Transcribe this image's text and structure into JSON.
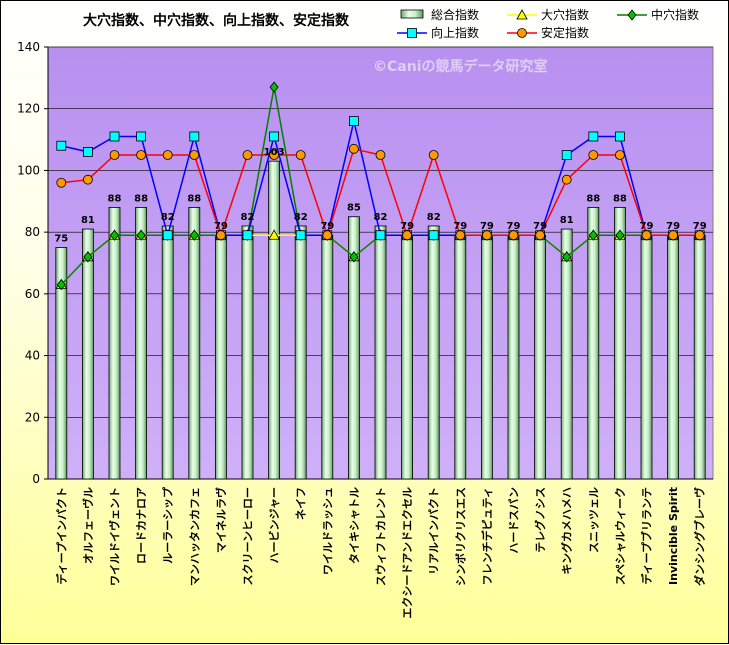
{
  "chart_data": {
    "type": "bar",
    "title": "大穴指数、中穴指数、向上指数、安定指数",
    "watermark": "©Caniの競馬データ研究室",
    "ylim": [
      0,
      140
    ],
    "yticks": [
      0,
      20,
      40,
      60,
      80,
      100,
      120,
      140
    ],
    "grid": true,
    "legend_position": "top-right",
    "categories": [
      "ディープインパクト",
      "オルフェーヴル",
      "ワイルドイヴェント",
      "ロードカナロア",
      "ルーラーシップ",
      "マンハッタンカフェ",
      "マイネルラヴ",
      "スクリーンヒーロー",
      "ハービンジャー",
      "ネイフ",
      "ワイルドラッシュ",
      "タイキシャトル",
      "スウィフトカレント",
      "エクシードアンドエクセル",
      "リアルインパクト",
      "シンボリクリスエス",
      "フレンチデピュティ",
      "ハードスパン",
      "テレグノシス",
      "キングカメハメハ",
      "スニッツェル",
      "スペシャルウィーク",
      "ディープブリランテ",
      "Invincible Spirit",
      "ダンシングブレーヴ"
    ],
    "series": [
      {
        "name": "総合指数",
        "kind": "bar",
        "color": "#c8f0c8",
        "values": [
          75,
          81,
          88,
          88,
          82,
          88,
          79,
          82,
          103,
          82,
          79,
          85,
          82,
          79,
          82,
          79,
          79,
          79,
          79,
          81,
          88,
          88,
          79,
          79,
          79
        ],
        "labels": [
          "75",
          "81",
          "88",
          "88",
          "82",
          "88",
          "79",
          "82",
          "103",
          "82",
          "79",
          "85",
          "82",
          "79",
          "82",
          "79",
          "79",
          "79",
          "79",
          "81",
          "88",
          "88",
          "79",
          "79",
          "79"
        ]
      },
      {
        "name": "大穴指数",
        "kind": "line",
        "color": "#ffff00",
        "marker": "triangle",
        "values": [
          63,
          72,
          79,
          79,
          79,
          79,
          79,
          79,
          79,
          79,
          79,
          72,
          79,
          79,
          79,
          79,
          79,
          79,
          79,
          72,
          79,
          79,
          79,
          79,
          79
        ]
      },
      {
        "name": "中穴指数",
        "kind": "line",
        "color": "#008000",
        "marker": "diamond",
        "values": [
          63,
          72,
          79,
          79,
          79,
          79,
          79,
          79,
          127,
          79,
          79,
          72,
          79,
          79,
          79,
          79,
          79,
          79,
          79,
          72,
          79,
          79,
          79,
          79,
          79
        ]
      },
      {
        "name": "向上指数",
        "kind": "line",
        "color": "#0000ff",
        "marker": "square",
        "values": [
          108,
          106,
          111,
          111,
          79,
          111,
          79,
          79,
          111,
          79,
          79,
          116,
          79,
          79,
          79,
          79,
          79,
          79,
          79,
          105,
          111,
          111,
          79,
          79,
          79
        ]
      },
      {
        "name": "安定指数",
        "kind": "line",
        "color": "#ff0000",
        "marker": "circle",
        "values": [
          96,
          97,
          105,
          105,
          105,
          105,
          79,
          105,
          105,
          105,
          79,
          107,
          105,
          79,
          105,
          79,
          79,
          79,
          79,
          97,
          105,
          105,
          79,
          79,
          79
        ]
      }
    ]
  }
}
